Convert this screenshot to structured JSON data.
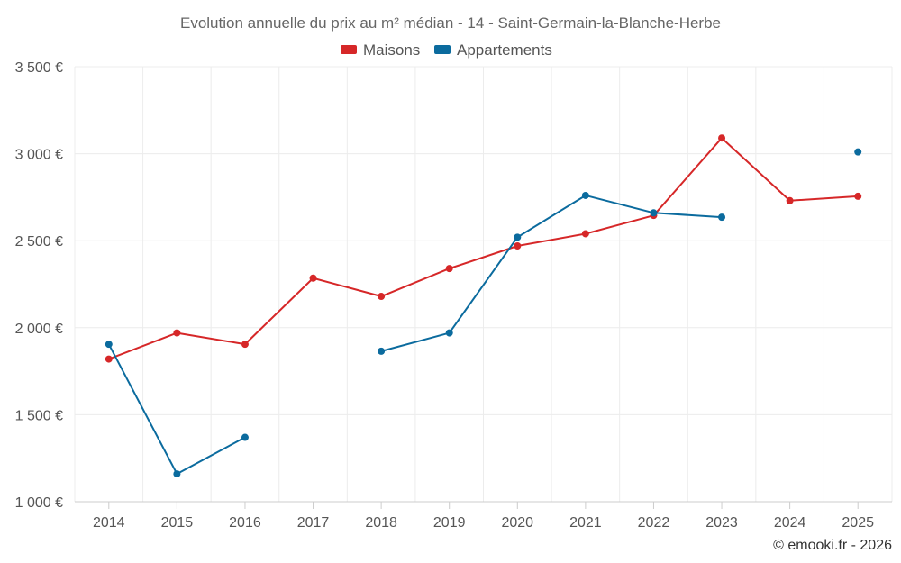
{
  "chart_data": {
    "type": "line",
    "title": "Evolution annuelle du prix au m² médian - 14 - Saint-Germain-la-Blanche-Herbe",
    "categories": [
      "2014",
      "2015",
      "2016",
      "2017",
      "2018",
      "2019",
      "2020",
      "2021",
      "2022",
      "2023",
      "2024",
      "2025"
    ],
    "y_ticks": [
      1000,
      1500,
      2000,
      2500,
      3000,
      3500
    ],
    "y_tick_labels": [
      "1 000 €",
      "1 500 €",
      "2 000 €",
      "2 500 €",
      "3 000 €",
      "3 500 €"
    ],
    "ylim": [
      1000,
      3500
    ],
    "grid": true,
    "legend_position": "top-center",
    "series": [
      {
        "name": "Maisons",
        "color": "#d62728",
        "values": [
          1820,
          1970,
          1905,
          2285,
          2180,
          2340,
          2470,
          2540,
          2645,
          3090,
          2730,
          2755
        ]
      },
      {
        "name": "Appartements",
        "color": "#0b6b9e",
        "values": [
          1905,
          1160,
          1370,
          null,
          1865,
          1970,
          2520,
          2760,
          2660,
          2635,
          null,
          3010
        ]
      }
    ],
    "credit": "© emooki.fr - 2026"
  }
}
